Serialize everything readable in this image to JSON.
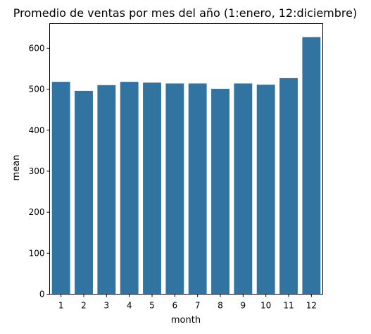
{
  "chart_data": {
    "type": "bar",
    "title": "Promedio de ventas por mes del año (1:enero, 12:diciembre)",
    "xlabel": "month",
    "ylabel": "mean",
    "categories": [
      "1",
      "2",
      "3",
      "4",
      "5",
      "6",
      "7",
      "8",
      "9",
      "10",
      "11",
      "12"
    ],
    "values": [
      518,
      496,
      510,
      518,
      516,
      514,
      514,
      501,
      514,
      511,
      527,
      627
    ],
    "ylim": [
      0,
      660
    ],
    "yticks": [
      0,
      100,
      200,
      300,
      400,
      500,
      600
    ],
    "grid": false,
    "bar_color": "#3274a1"
  }
}
